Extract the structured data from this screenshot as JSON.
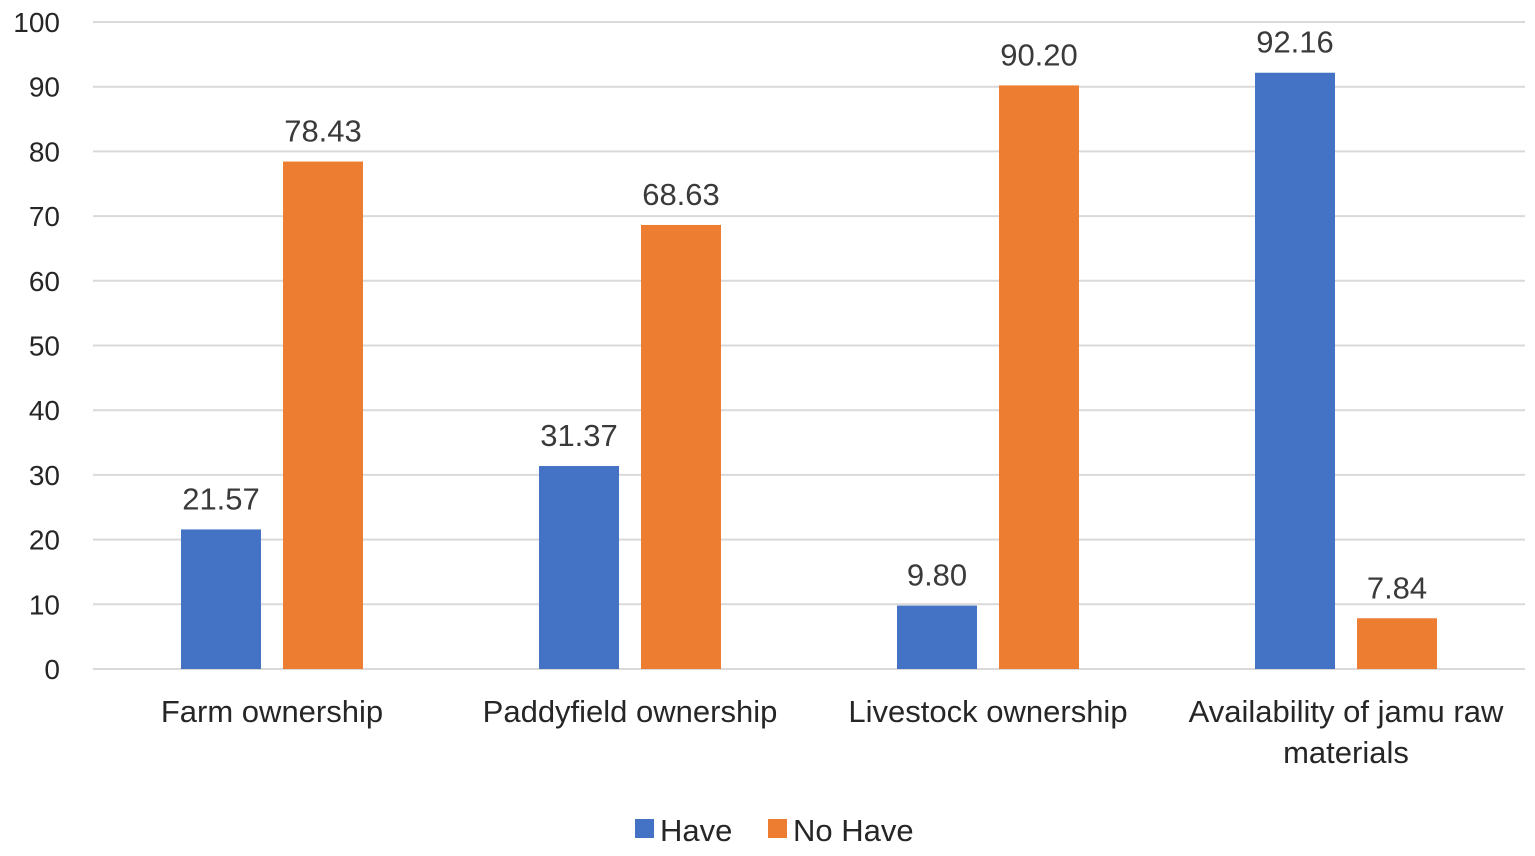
{
  "chart_data": {
    "type": "bar",
    "title": "",
    "xlabel": "",
    "ylabel": "",
    "ylim": [
      0,
      100
    ],
    "yticks": [
      0,
      10,
      20,
      30,
      40,
      50,
      60,
      70,
      80,
      90,
      100
    ],
    "grid": true,
    "legend_position": "bottom",
    "categories": [
      [
        "Farm ownership"
      ],
      [
        "Paddyfield ownership"
      ],
      [
        "Livestock ownership"
      ],
      [
        "Availability of jamu raw",
        "materials"
      ]
    ],
    "series": [
      {
        "name": "Have",
        "color": "#4472c4",
        "values": [
          21.57,
          31.37,
          9.8,
          92.16
        ],
        "labels": [
          "21.57",
          "31.37",
          "9.80",
          "92.16"
        ]
      },
      {
        "name": "No Have",
        "color": "#ed7d31",
        "values": [
          78.43,
          68.63,
          90.2,
          7.84
        ],
        "labels": [
          "78.43",
          "68.63",
          "90.20",
          "7.84"
        ]
      }
    ]
  }
}
